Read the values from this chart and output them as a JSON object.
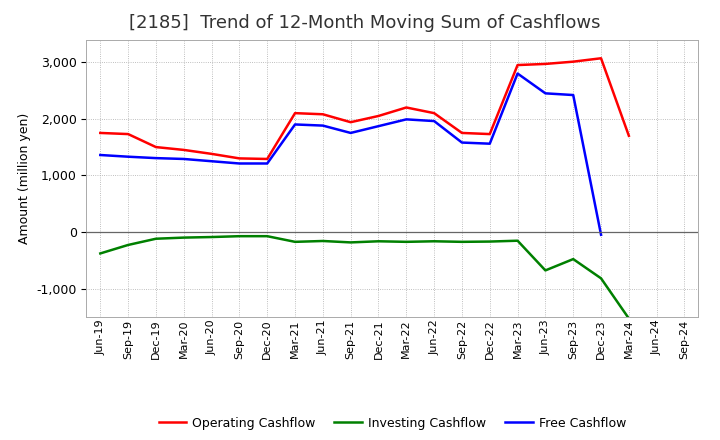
{
  "title": "[2185]  Trend of 12-Month Moving Sum of Cashflows",
  "ylabel": "Amount (million yen)",
  "background_color": "#ffffff",
  "grid_color": "#aaaaaa",
  "x_labels": [
    "Jun-19",
    "Sep-19",
    "Dec-19",
    "Mar-20",
    "Jun-20",
    "Sep-20",
    "Dec-20",
    "Mar-21",
    "Jun-21",
    "Sep-21",
    "Dec-21",
    "Mar-22",
    "Jun-22",
    "Sep-22",
    "Dec-22",
    "Mar-23",
    "Jun-23",
    "Sep-23",
    "Dec-23",
    "Mar-24",
    "Jun-24",
    "Sep-24"
  ],
  "operating": [
    1750,
    1730,
    1500,
    1450,
    1380,
    1300,
    1290,
    2100,
    2080,
    1940,
    2050,
    2200,
    2100,
    1750,
    1730,
    2950,
    2970,
    3010,
    3070,
    1700,
    null,
    null
  ],
  "investing": [
    -380,
    -230,
    -120,
    -100,
    -90,
    -75,
    -75,
    -175,
    -160,
    -185,
    -165,
    -175,
    -165,
    -175,
    -170,
    -155,
    -680,
    -480,
    -820,
    -1530,
    null,
    null
  ],
  "free": [
    1360,
    1330,
    1305,
    1290,
    1250,
    1210,
    1210,
    1900,
    1880,
    1750,
    1870,
    1990,
    1960,
    1580,
    1560,
    2800,
    2450,
    2420,
    -50,
    null,
    null,
    null
  ],
  "operating_color": "#ff0000",
  "investing_color": "#008000",
  "free_color": "#0000ff",
  "ylim": [
    -1500,
    3400
  ],
  "yticks": [
    -1000,
    0,
    1000,
    2000,
    3000
  ],
  "title_fontsize": 13,
  "axis_fontsize": 9,
  "tick_fontsize": 8,
  "legend_fontsize": 9
}
